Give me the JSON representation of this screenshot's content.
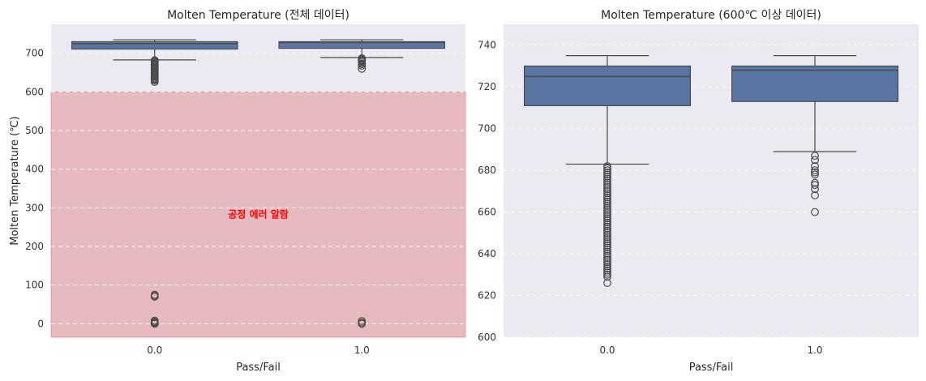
{
  "chart_data": [
    {
      "type": "box",
      "title": "Molten Temperature (전체 데이터)",
      "xlabel": "Pass/Fail",
      "ylabel": "Molten Temperature (℃)",
      "categories": [
        "0.0",
        "1.0"
      ],
      "ylim": [
        -35,
        775
      ],
      "yticks": [
        0,
        100,
        200,
        300,
        400,
        500,
        600,
        700
      ],
      "grid": "horizontal dashed",
      "boxes": [
        {
          "category": "0.0",
          "whisker_low": 683,
          "q1": 711,
          "median": 725,
          "q3": 730,
          "whisker_high": 735,
          "outliers": [
            682,
            680,
            678,
            675,
            672,
            670,
            668,
            665,
            662,
            660,
            658,
            655,
            652,
            650,
            648,
            645,
            642,
            640,
            637,
            634,
            632,
            630,
            626,
            75,
            72,
            70,
            8,
            5,
            3,
            1,
            0
          ]
        },
        {
          "category": "1.0",
          "whisker_low": 689,
          "q1": 713,
          "median": 728,
          "q3": 730,
          "whisker_high": 735,
          "outliers": [
            687,
            685,
            682,
            680,
            678,
            674,
            672,
            668,
            660,
            7,
            3,
            0
          ]
        }
      ],
      "shaded_region": {
        "y_from": -35,
        "y_to": 600,
        "color": "#e06060",
        "label": "공정 에러 알람"
      }
    },
    {
      "type": "box",
      "title": "Molten Temperature (600℃ 이상 데이터)",
      "xlabel": "Pass/Fail",
      "ylabel": "",
      "categories": [
        "0.0",
        "1.0"
      ],
      "ylim": [
        600,
        750
      ],
      "yticks": [
        600,
        620,
        640,
        660,
        680,
        700,
        720,
        740
      ],
      "grid": "horizontal dashed",
      "boxes": [
        {
          "category": "0.0",
          "whisker_low": 683,
          "q1": 711,
          "median": 725,
          "q3": 730,
          "whisker_high": 735,
          "outliers": [
            682,
            681,
            680,
            679,
            678,
            677,
            676,
            675,
            674,
            673,
            672,
            671,
            670,
            669,
            668,
            667,
            666,
            665,
            664,
            663,
            662,
            661,
            660,
            659,
            658,
            657,
            656,
            655,
            654,
            653,
            652,
            651,
            650,
            649,
            648,
            647,
            646,
            645,
            644,
            643,
            642,
            641,
            640,
            639,
            638,
            637,
            636,
            635,
            634,
            633,
            632,
            631,
            630,
            629,
            626
          ]
        },
        {
          "category": "1.0",
          "whisker_low": 689,
          "q1": 713,
          "median": 728,
          "q3": 730,
          "whisker_high": 735,
          "outliers": [
            687,
            685,
            682,
            680,
            679,
            678,
            674,
            673,
            671,
            668,
            660
          ]
        }
      ]
    }
  ],
  "colors": {
    "box_fill": "#5875a4",
    "axes_bg": "#eaeaf2",
    "line": "#4a4a4a",
    "alarm_text": "#ff0000"
  }
}
